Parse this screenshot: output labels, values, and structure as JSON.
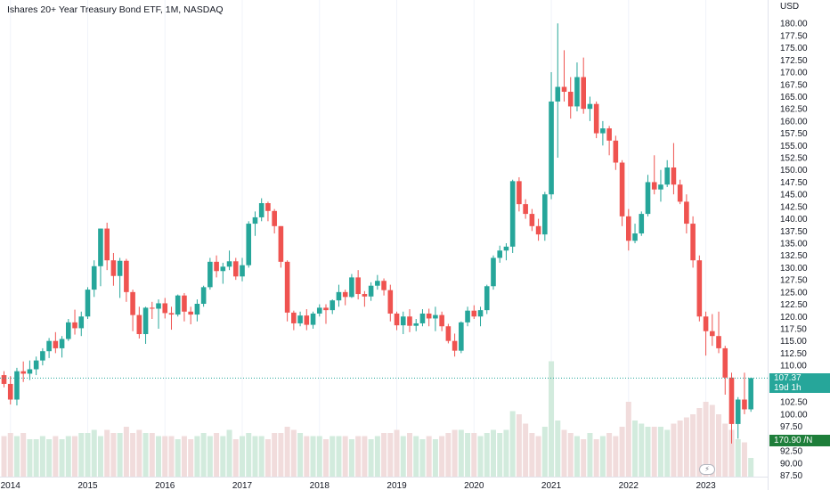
{
  "header": {
    "title": "Ishares 20+ Year Treasury Bond ETF, 1M, NASDAQ"
  },
  "axis": {
    "currency": "USD"
  },
  "labels": {
    "last_price": "107.37",
    "countdown": "19d 1h",
    "volume_ma": "170.90 /N"
  },
  "colors": {
    "up": "#26a69a",
    "down": "#ef5350",
    "vol_up": "#d2ebdd",
    "vol_down": "#f1dcdc",
    "last_price_bg": "#26a69a",
    "volume_ma_bg": "#1e7e3a",
    "grid": "#f0f3fa"
  },
  "icons": {
    "flash": "lightning-icon"
  },
  "chart_data": {
    "type": "candlestick",
    "ylim": [
      87.5,
      182.5
    ],
    "y_tick_step": 2.5,
    "grid": "vertical",
    "x_ticks": [
      {
        "label": "2014",
        "year": 2014
      },
      {
        "label": "2015",
        "year": 2015
      },
      {
        "label": "2016",
        "year": 2016
      },
      {
        "label": "2017",
        "year": 2017
      },
      {
        "label": "2018",
        "year": 2018
      },
      {
        "label": "2019",
        "year": 2019
      },
      {
        "label": "2020",
        "year": 2020
      },
      {
        "label": "2021",
        "year": 2021
      },
      {
        "label": "2022",
        "year": 2022
      },
      {
        "label": "2023",
        "year": 2023
      }
    ],
    "start": "2013-12",
    "candles": [
      [
        108.0,
        108.8,
        105.5,
        106.2,
        13
      ],
      [
        106.2,
        107.8,
        102.0,
        103.0,
        14
      ],
      [
        103.0,
        109.5,
        101.8,
        108.8,
        13
      ],
      [
        108.8,
        110.8,
        106.6,
        108.3,
        14
      ],
      [
        108.3,
        111.0,
        107.0,
        109.2,
        12
      ],
      [
        109.2,
        111.8,
        108.0,
        111.0,
        12
      ],
      [
        111.0,
        113.5,
        110.0,
        112.9,
        13
      ],
      [
        112.9,
        115.6,
        111.5,
        115.0,
        12
      ],
      [
        115.0,
        116.8,
        112.5,
        113.5,
        13
      ],
      [
        113.5,
        116.0,
        111.6,
        115.4,
        12
      ],
      [
        115.4,
        119.5,
        115.0,
        118.8,
        13
      ],
      [
        118.8,
        121.4,
        116.3,
        117.6,
        13
      ],
      [
        117.6,
        121.0,
        116.0,
        120.0,
        14
      ],
      [
        120.0,
        126.0,
        119.5,
        125.5,
        14
      ],
      [
        125.5,
        131.5,
        124.0,
        130.3,
        15
      ],
      [
        130.3,
        138.0,
        126.2,
        138.0,
        13
      ],
      [
        138.0,
        139.2,
        129.5,
        131.5,
        15
      ],
      [
        131.5,
        133.0,
        126.3,
        128.3,
        14
      ],
      [
        128.3,
        132.0,
        123.8,
        131.4,
        14
      ],
      [
        131.4,
        131.8,
        123.0,
        125.0,
        16
      ],
      [
        125.0,
        125.5,
        117.0,
        120.3,
        14
      ],
      [
        120.3,
        122.0,
        115.5,
        116.4,
        15
      ],
      [
        116.4,
        122.0,
        114.4,
        121.8,
        14
      ],
      [
        121.8,
        123.0,
        119.5,
        121.6,
        14
      ],
      [
        121.6,
        123.5,
        117.5,
        122.7,
        13
      ],
      [
        122.7,
        123.8,
        119.6,
        120.7,
        13
      ],
      [
        120.7,
        122.0,
        117.3,
        120.4,
        13
      ],
      [
        120.4,
        124.5,
        120.0,
        124.3,
        12
      ],
      [
        124.3,
        124.8,
        119.0,
        121.0,
        13
      ],
      [
        121.0,
        122.0,
        118.4,
        120.4,
        12
      ],
      [
        120.4,
        123.5,
        119.0,
        122.6,
        13
      ],
      [
        122.6,
        126.3,
        122.0,
        126.0,
        14
      ],
      [
        126.0,
        132.0,
        125.5,
        131.2,
        13
      ],
      [
        131.2,
        132.5,
        128.0,
        129.3,
        14
      ],
      [
        129.3,
        131.0,
        126.7,
        130.2,
        13
      ],
      [
        130.2,
        133.5,
        129.5,
        131.3,
        15
      ],
      [
        131.3,
        132.0,
        127.5,
        128.2,
        12
      ],
      [
        128.2,
        132.0,
        127.2,
        130.5,
        13
      ],
      [
        130.5,
        139.5,
        130.0,
        139.0,
        14
      ],
      [
        139.0,
        141.5,
        136.5,
        140.3,
        13
      ],
      [
        140.3,
        144.2,
        139.5,
        143.2,
        13
      ],
      [
        143.2,
        143.5,
        139.5,
        141.6,
        12
      ],
      [
        141.6,
        142.0,
        137.0,
        138.5,
        14
      ],
      [
        138.5,
        138.5,
        130.0,
        131.2,
        14
      ],
      [
        131.2,
        131.5,
        119.0,
        120.8,
        16
      ],
      [
        120.8,
        121.2,
        117.2,
        118.6,
        15
      ],
      [
        118.6,
        121.0,
        118.0,
        120.2,
        14
      ],
      [
        120.2,
        121.5,
        117.2,
        118.3,
        13
      ],
      [
        118.3,
        121.0,
        117.5,
        120.6,
        13
      ],
      [
        120.6,
        122.5,
        120.0,
        121.8,
        13
      ],
      [
        121.8,
        122.5,
        118.5,
        121.3,
        12
      ],
      [
        121.3,
        123.5,
        120.5,
        123.3,
        13
      ],
      [
        123.3,
        126.5,
        122.0,
        125.0,
        13
      ],
      [
        125.0,
        125.5,
        122.3,
        124.0,
        13
      ],
      [
        124.0,
        128.7,
        123.8,
        128.0,
        12
      ],
      [
        128.0,
        129.5,
        123.5,
        124.6,
        13
      ],
      [
        124.6,
        125.2,
        122.0,
        124.1,
        13
      ],
      [
        124.1,
        127.0,
        123.2,
        126.3,
        12
      ],
      [
        126.3,
        128.5,
        125.5,
        127.3,
        13
      ],
      [
        127.3,
        127.8,
        124.3,
        125.4,
        14
      ],
      [
        125.4,
        126.5,
        119.0,
        120.6,
        14
      ],
      [
        120.6,
        121.0,
        117.2,
        118.2,
        15
      ],
      [
        118.2,
        121.0,
        116.4,
        120.0,
        13
      ],
      [
        120.0,
        121.5,
        116.8,
        118.1,
        14
      ],
      [
        118.1,
        119.5,
        117.0,
        118.6,
        13
      ],
      [
        118.6,
        121.5,
        118.0,
        120.6,
        12
      ],
      [
        120.6,
        121.6,
        118.0,
        119.6,
        13
      ],
      [
        119.6,
        122.0,
        117.0,
        120.3,
        12
      ],
      [
        120.3,
        121.0,
        117.0,
        118.0,
        13
      ],
      [
        118.0,
        118.5,
        114.5,
        115.0,
        14
      ],
      [
        115.0,
        116.5,
        111.8,
        113.0,
        15
      ],
      [
        113.0,
        119.0,
        112.5,
        118.8,
        15
      ],
      [
        118.8,
        122.0,
        118.0,
        121.2,
        14
      ],
      [
        121.2,
        122.3,
        119.5,
        120.0,
        14
      ],
      [
        120.0,
        122.0,
        118.0,
        121.3,
        13
      ],
      [
        121.3,
        126.5,
        120.5,
        126.2,
        14
      ],
      [
        126.2,
        132.5,
        125.5,
        132.0,
        15
      ],
      [
        132.0,
        134.5,
        131.0,
        133.5,
        14
      ],
      [
        133.5,
        135.0,
        131.5,
        134.3,
        15
      ],
      [
        134.3,
        148.0,
        133.0,
        147.7,
        21
      ],
      [
        147.7,
        148.5,
        141.5,
        143.0,
        20
      ],
      [
        143.0,
        144.0,
        140.0,
        141.0,
        17
      ],
      [
        141.0,
        142.0,
        137.5,
        138.5,
        14
      ],
      [
        138.5,
        140.0,
        135.5,
        136.8,
        13
      ],
      [
        136.8,
        145.5,
        135.5,
        145.0,
        16
      ],
      [
        145.0,
        170.0,
        144.0,
        164.0,
        37
      ],
      [
        164.0,
        180.0,
        152.5,
        167.0,
        18
      ],
      [
        167.0,
        174.5,
        164.0,
        166.0,
        15
      ],
      [
        166.0,
        169.0,
        160.5,
        163.0,
        14
      ],
      [
        163.0,
        172.0,
        162.0,
        169.0,
        13
      ],
      [
        169.0,
        173.0,
        161.5,
        162.5,
        12
      ],
      [
        162.5,
        165.0,
        160.0,
        163.5,
        14
      ],
      [
        163.5,
        164.0,
        156.5,
        157.5,
        12
      ],
      [
        157.5,
        160.0,
        155.0,
        158.5,
        13
      ],
      [
        158.5,
        159.0,
        153.0,
        156.0,
        14
      ],
      [
        156.0,
        157.0,
        150.0,
        151.5,
        13
      ],
      [
        151.5,
        152.0,
        138.5,
        140.5,
        16
      ],
      [
        140.5,
        142.0,
        133.5,
        135.5,
        24
      ],
      [
        135.5,
        139.0,
        135.0,
        137.0,
        18
      ],
      [
        137.0,
        141.5,
        136.5,
        141.0,
        17
      ],
      [
        141.0,
        149.0,
        140.5,
        147.5,
        16
      ],
      [
        147.5,
        153.0,
        145.0,
        146.0,
        16
      ],
      [
        146.0,
        150.0,
        143.5,
        147.0,
        16
      ],
      [
        147.0,
        152.0,
        146.5,
        150.5,
        15
      ],
      [
        150.5,
        155.5,
        145.0,
        147.0,
        17
      ],
      [
        147.0,
        148.0,
        143.0,
        143.5,
        18
      ],
      [
        143.5,
        145.0,
        137.0,
        139.0,
        19
      ],
      [
        139.0,
        140.5,
        130.0,
        131.5,
        20
      ],
      [
        131.5,
        132.5,
        119.0,
        120.0,
        22
      ],
      [
        120.0,
        121.0,
        112.0,
        117.0,
        24
      ],
      [
        117.0,
        120.5,
        114.0,
        116.0,
        23
      ],
      [
        116.0,
        121.0,
        112.5,
        113.5,
        20
      ],
      [
        113.5,
        114.0,
        104.0,
        107.5,
        17
      ],
      [
        107.5,
        108.5,
        94.0,
        98.0,
        15
      ],
      [
        98.0,
        103.5,
        95.0,
        103.0,
        12
      ],
      [
        103.0,
        108.5,
        100.0,
        101.0,
        11
      ],
      [
        101.0,
        107.5,
        100.5,
        107.4,
        6
      ]
    ]
  }
}
